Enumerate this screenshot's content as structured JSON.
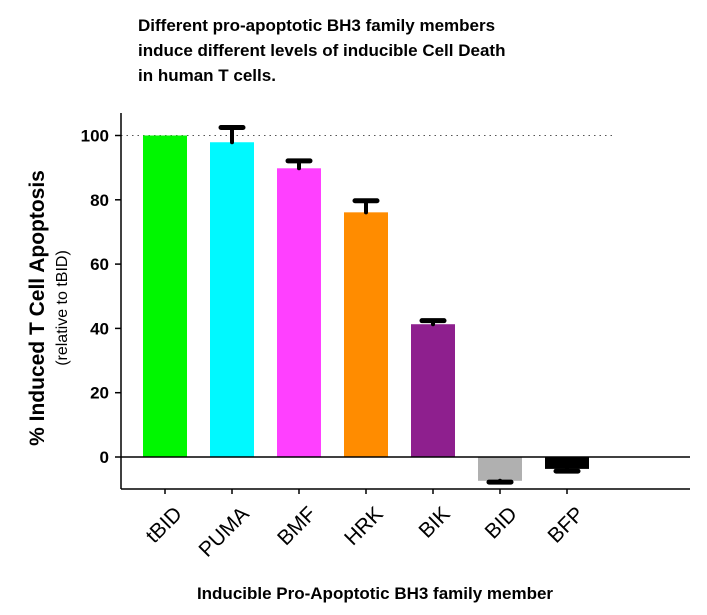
{
  "chart_data": {
    "type": "bar",
    "title_lines": [
      "Different pro-apoptotic BH3 family members",
      "induce different levels of inducible Cell Death",
      "in human T cells."
    ],
    "ylabel": "% Induced T Cell Apoptosis",
    "ylabel_sub": "(relative to tBID)",
    "xlabel": "Inducible Pro-Apoptotic BH3 family member",
    "categories": [
      "tBID",
      "PUMA",
      "BMF",
      "HRK",
      "BIK",
      "BID",
      "BFP"
    ],
    "values": [
      100,
      97.9,
      89.8,
      76.1,
      41.3,
      -7.4,
      -3.7
    ],
    "error_upper": [
      null,
      102.5,
      92.1,
      79.7,
      42.4,
      -7.8,
      -4.4
    ],
    "colors": [
      "#00f700",
      "#00f9ff",
      "#ff40ff",
      "#ff8c00",
      "#8e1f8e",
      "#b0b0b0",
      "#000000"
    ],
    "ylim": [
      -10,
      107
    ],
    "yticks": [
      0,
      20,
      40,
      60,
      80,
      100
    ],
    "reference_line": 100,
    "grid": false
  }
}
